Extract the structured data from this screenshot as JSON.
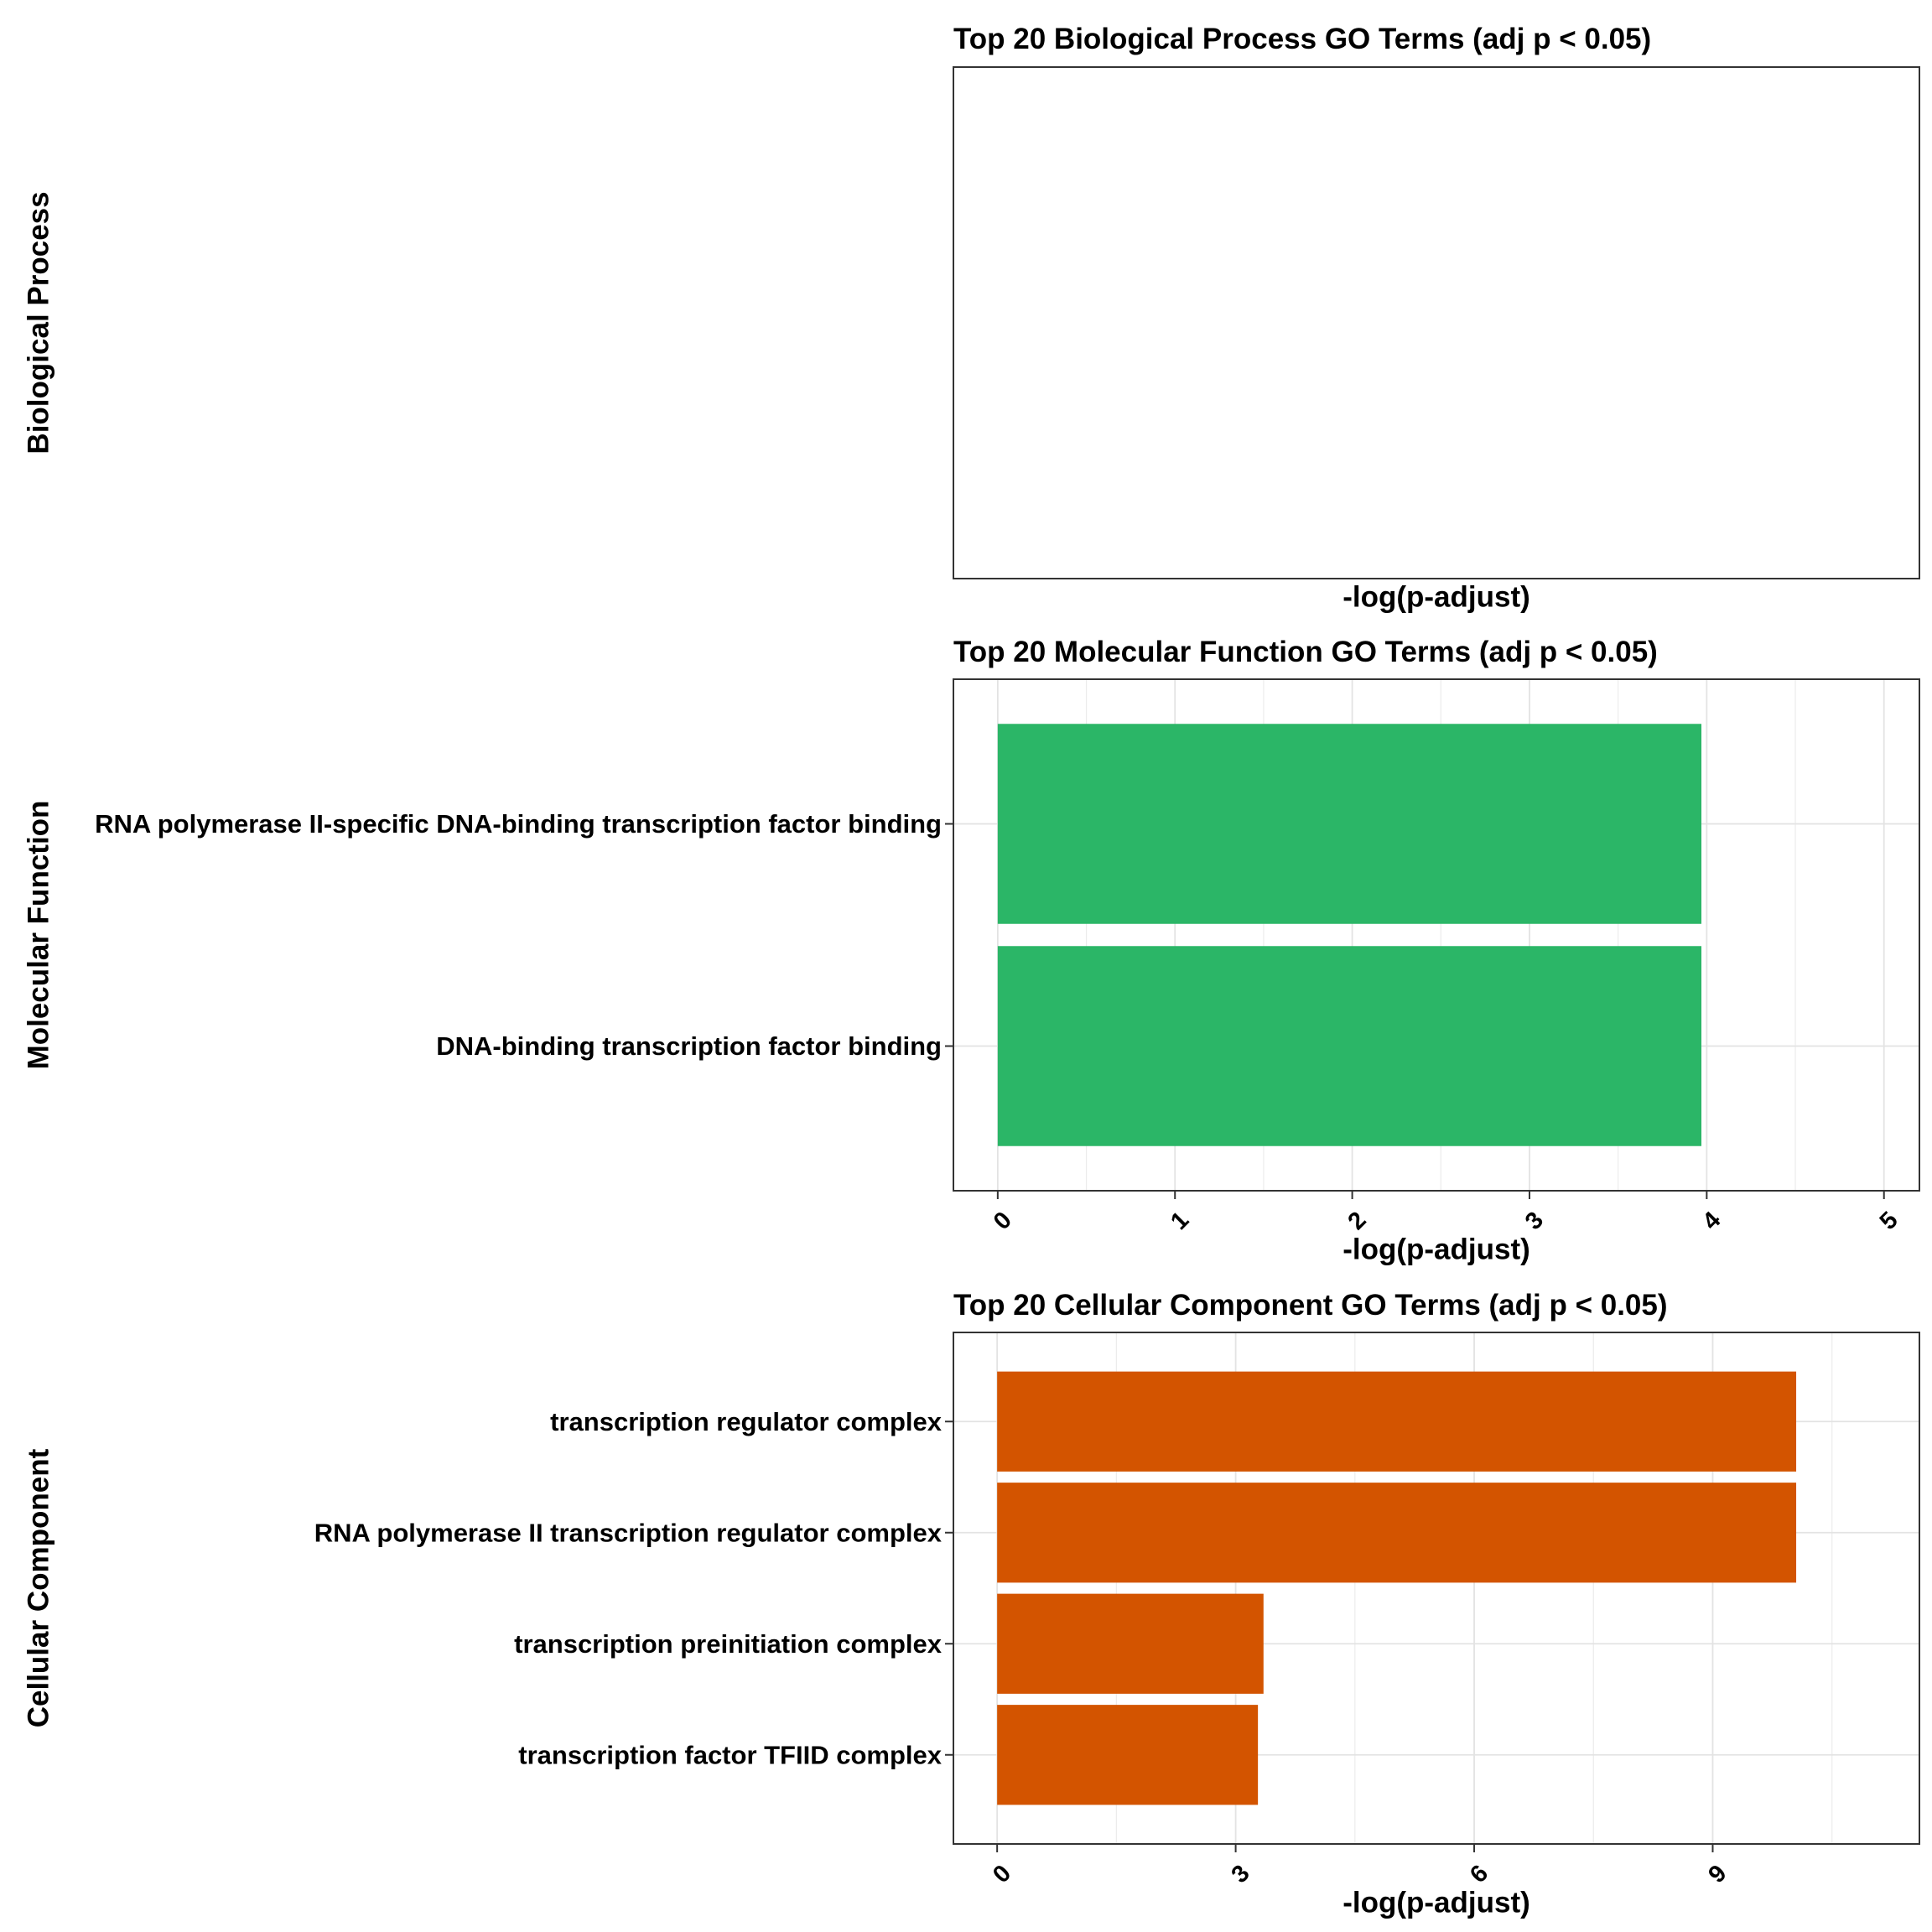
{
  "chart_data": [
    {
      "type": "bar",
      "orientation": "horizontal",
      "title": "Top 20 Biological Process GO Terms (adj p < 0.05)",
      "row_label": "Biological Process",
      "xlabel": "-log(p-adjust)",
      "categories": [],
      "values": [],
      "xticks": [],
      "bar_color": "#2EB66A",
      "grid": false
    },
    {
      "type": "bar",
      "orientation": "horizontal",
      "title": "Top 20 Molecular Function GO Terms (adj p < 0.05)",
      "row_label": "Molecular Function",
      "xlabel": "-log(p-adjust)",
      "categories": [
        "RNA polymerase II-specific DNA-binding transcription factor binding",
        "DNA-binding transcription factor binding"
      ],
      "values": [
        3.97,
        3.97
      ],
      "xlim": [
        -0.25,
        5.2
      ],
      "xticks": [
        0,
        1,
        2,
        3,
        4,
        5
      ],
      "bar_color": "#2BB667",
      "grid": true
    },
    {
      "type": "bar",
      "orientation": "horizontal",
      "title": "Top 20 Cellular Component GO Terms (adj p < 0.05)",
      "row_label": "Cellular Component",
      "xlabel": "-log(p-adjust)",
      "categories": [
        "transcription regulator complex",
        "RNA polymerase II transcription regulator complex",
        "transcription preinitiation complex",
        "transcription factor TFIID complex"
      ],
      "values": [
        10.05,
        10.05,
        3.35,
        3.28
      ],
      "xlim": [
        -0.55,
        11.6
      ],
      "xticks": [
        0,
        3,
        6,
        9
      ],
      "bar_color": "#D35400",
      "grid": true
    }
  ]
}
